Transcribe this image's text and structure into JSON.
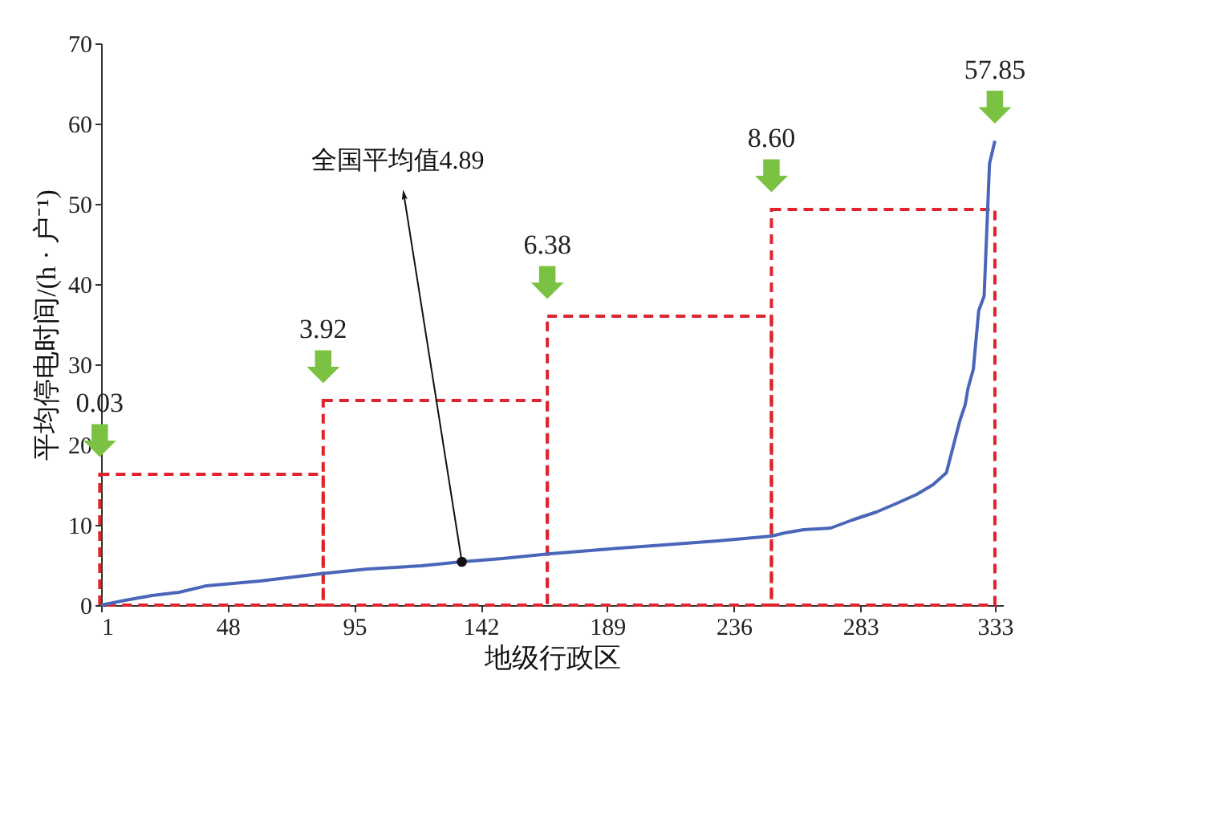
{
  "chart_data": {
    "type": "line",
    "xlabel": "地级行政区",
    "ylabel": "平均停电时间/(h · 户⁻¹)",
    "xlim": [
      1,
      336
    ],
    "xticks": [
      1,
      48,
      95,
      142,
      189,
      236,
      283,
      333
    ],
    "ylim": [
      0,
      70
    ],
    "yticks": [
      0,
      10,
      20,
      30,
      40,
      50,
      60,
      70
    ],
    "grid": false,
    "marker": "none",
    "series": [
      {
        "color": "#4a66b8",
        "line_style": "solid",
        "x": [
          1,
          10,
          20,
          30,
          40,
          60,
          83,
          100,
          120,
          135,
          150,
          167,
          190,
          210,
          230,
          250,
          255,
          262,
          272,
          280,
          289,
          296,
          304,
          310,
          315,
          318,
          320,
          322,
          323,
          325,
          327,
          329,
          331,
          333
        ],
        "values": [
          0,
          0.6,
          1.2,
          1.6,
          2.4,
          3.0,
          3.92,
          4.5,
          4.9,
          5.4,
          5.8,
          6.38,
          7.0,
          7.5,
          8.0,
          8.6,
          9.0,
          9.4,
          9.6,
          10.6,
          11.6,
          12.6,
          13.8,
          15.0,
          16.5,
          20.4,
          23.0,
          25.0,
          27.0,
          29.4,
          36.7,
          38.5,
          55.0,
          57.85
        ]
      },
      {
        "type": "bar",
        "color": "#e0242c",
        "line_style": "dashed",
        "x": [
          42,
          125,
          208.5,
          291.5
        ],
        "values": [
          16.3,
          25.5,
          36,
          49.3
        ]
      }
    ],
    "annotations": [
      "0.03",
      "3.92",
      "6.38",
      "8.60",
      "57.85",
      {
        "text": "全国平均值4.89",
        "x": 135,
        "y": 5.4
      }
    ]
  }
}
